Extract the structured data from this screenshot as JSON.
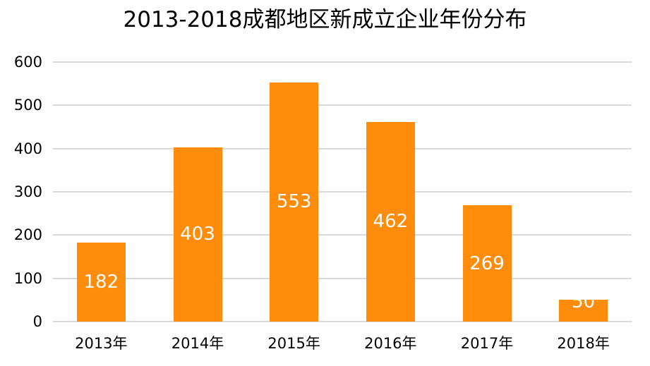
{
  "chart_data": {
    "type": "bar",
    "title": "2013-2018成都地区新成立企业年份分布",
    "categories": [
      "2013年",
      "2014年",
      "2015年",
      "2016年",
      "2017年",
      "2018年"
    ],
    "values": [
      182,
      403,
      553,
      462,
      269,
      50
    ],
    "data_labels": [
      "182",
      "403",
      "553",
      "462",
      "269",
      "50"
    ],
    "xlabel": "",
    "ylabel": "",
    "ylim": [
      0,
      600
    ],
    "yticks": [
      "0",
      "100",
      "200",
      "300",
      "400",
      "500",
      "600"
    ],
    "grid": true,
    "legend": "none",
    "bar_color": "#ff8c0a"
  }
}
